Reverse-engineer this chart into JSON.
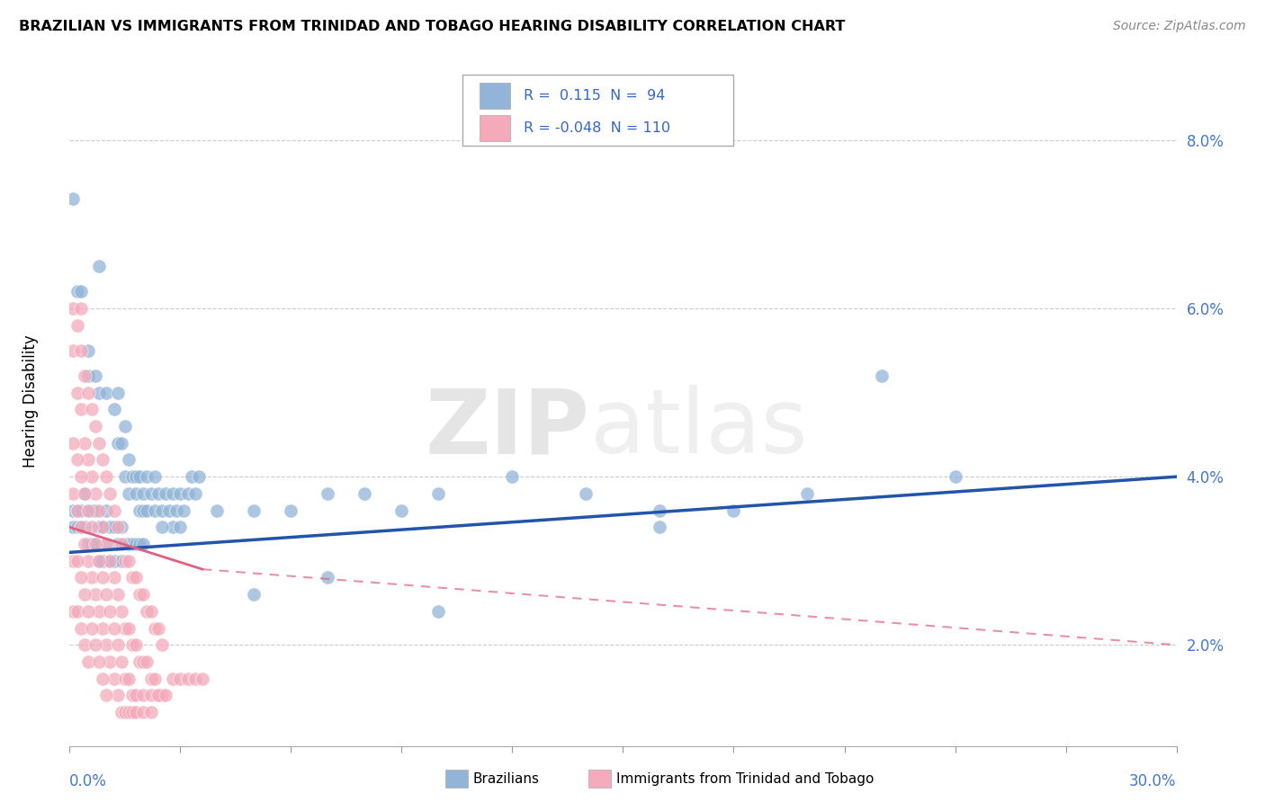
{
  "title": "BRAZILIAN VS IMMIGRANTS FROM TRINIDAD AND TOBAGO HEARING DISABILITY CORRELATION CHART",
  "source": "Source: ZipAtlas.com",
  "ylabel": "Hearing Disability",
  "ytick_labels": [
    "2.0%",
    "4.0%",
    "6.0%",
    "8.0%"
  ],
  "ytick_values": [
    0.02,
    0.04,
    0.06,
    0.08
  ],
  "xlim": [
    0.0,
    0.3
  ],
  "ylim": [
    0.008,
    0.09
  ],
  "legend_blue_r": "0.115",
  "legend_blue_n": "94",
  "legend_pink_r": "-0.048",
  "legend_pink_n": "110",
  "legend_label_blue": "Brazilians",
  "legend_label_pink": "Immigrants from Trinidad and Tobago",
  "blue_color": "#92B4D8",
  "pink_color": "#F4AABB",
  "trendline_blue_color": "#2255AA",
  "trendline_pink_color": "#E06080",
  "blue_scatter": [
    [
      0.001,
      0.073
    ],
    [
      0.002,
      0.062
    ],
    [
      0.003,
      0.062
    ],
    [
      0.005,
      0.055
    ],
    [
      0.005,
      0.052
    ],
    [
      0.007,
      0.052
    ],
    [
      0.008,
      0.065
    ],
    [
      0.008,
      0.05
    ],
    [
      0.01,
      0.05
    ],
    [
      0.012,
      0.048
    ],
    [
      0.013,
      0.05
    ],
    [
      0.013,
      0.044
    ],
    [
      0.014,
      0.044
    ],
    [
      0.015,
      0.046
    ],
    [
      0.015,
      0.04
    ],
    [
      0.016,
      0.042
    ],
    [
      0.016,
      0.038
    ],
    [
      0.017,
      0.04
    ],
    [
      0.018,
      0.04
    ],
    [
      0.018,
      0.038
    ],
    [
      0.019,
      0.04
    ],
    [
      0.019,
      0.036
    ],
    [
      0.02,
      0.038
    ],
    [
      0.02,
      0.036
    ],
    [
      0.021,
      0.04
    ],
    [
      0.021,
      0.036
    ],
    [
      0.022,
      0.038
    ],
    [
      0.023,
      0.04
    ],
    [
      0.023,
      0.036
    ],
    [
      0.024,
      0.038
    ],
    [
      0.025,
      0.036
    ],
    [
      0.026,
      0.038
    ],
    [
      0.027,
      0.036
    ],
    [
      0.028,
      0.038
    ],
    [
      0.028,
      0.034
    ],
    [
      0.029,
      0.036
    ],
    [
      0.03,
      0.038
    ],
    [
      0.031,
      0.036
    ],
    [
      0.032,
      0.038
    ],
    [
      0.033,
      0.04
    ],
    [
      0.034,
      0.038
    ],
    [
      0.035,
      0.04
    ],
    [
      0.001,
      0.036
    ],
    [
      0.001,
      0.034
    ],
    [
      0.002,
      0.036
    ],
    [
      0.002,
      0.034
    ],
    [
      0.003,
      0.036
    ],
    [
      0.003,
      0.034
    ],
    [
      0.004,
      0.038
    ],
    [
      0.004,
      0.034
    ],
    [
      0.005,
      0.036
    ],
    [
      0.005,
      0.032
    ],
    [
      0.006,
      0.036
    ],
    [
      0.006,
      0.032
    ],
    [
      0.007,
      0.036
    ],
    [
      0.007,
      0.032
    ],
    [
      0.008,
      0.034
    ],
    [
      0.008,
      0.03
    ],
    [
      0.009,
      0.034
    ],
    [
      0.009,
      0.03
    ],
    [
      0.01,
      0.036
    ],
    [
      0.01,
      0.032
    ],
    [
      0.011,
      0.034
    ],
    [
      0.011,
      0.03
    ],
    [
      0.012,
      0.034
    ],
    [
      0.012,
      0.03
    ],
    [
      0.013,
      0.032
    ],
    [
      0.014,
      0.034
    ],
    [
      0.014,
      0.03
    ],
    [
      0.015,
      0.032
    ],
    [
      0.016,
      0.032
    ],
    [
      0.017,
      0.032
    ],
    [
      0.018,
      0.032
    ],
    [
      0.019,
      0.032
    ],
    [
      0.02,
      0.032
    ],
    [
      0.025,
      0.034
    ],
    [
      0.03,
      0.034
    ],
    [
      0.04,
      0.036
    ],
    [
      0.05,
      0.036
    ],
    [
      0.06,
      0.036
    ],
    [
      0.07,
      0.038
    ],
    [
      0.08,
      0.038
    ],
    [
      0.09,
      0.036
    ],
    [
      0.1,
      0.038
    ],
    [
      0.12,
      0.04
    ],
    [
      0.14,
      0.038
    ],
    [
      0.16,
      0.036
    ],
    [
      0.2,
      0.038
    ],
    [
      0.22,
      0.052
    ],
    [
      0.24,
      0.04
    ],
    [
      0.16,
      0.034
    ],
    [
      0.18,
      0.036
    ],
    [
      0.05,
      0.026
    ],
    [
      0.07,
      0.028
    ],
    [
      0.1,
      0.024
    ]
  ],
  "pink_scatter": [
    [
      0.001,
      0.06
    ],
    [
      0.001,
      0.055
    ],
    [
      0.002,
      0.058
    ],
    [
      0.002,
      0.05
    ],
    [
      0.003,
      0.06
    ],
    [
      0.003,
      0.055
    ],
    [
      0.003,
      0.048
    ],
    [
      0.004,
      0.052
    ],
    [
      0.004,
      0.044
    ],
    [
      0.005,
      0.05
    ],
    [
      0.005,
      0.042
    ],
    [
      0.006,
      0.048
    ],
    [
      0.006,
      0.04
    ],
    [
      0.007,
      0.046
    ],
    [
      0.007,
      0.038
    ],
    [
      0.008,
      0.044
    ],
    [
      0.008,
      0.036
    ],
    [
      0.009,
      0.042
    ],
    [
      0.009,
      0.034
    ],
    [
      0.01,
      0.04
    ],
    [
      0.01,
      0.032
    ],
    [
      0.011,
      0.038
    ],
    [
      0.011,
      0.03
    ],
    [
      0.012,
      0.036
    ],
    [
      0.012,
      0.028
    ],
    [
      0.013,
      0.034
    ],
    [
      0.013,
      0.026
    ],
    [
      0.014,
      0.032
    ],
    [
      0.014,
      0.024
    ],
    [
      0.015,
      0.03
    ],
    [
      0.015,
      0.022
    ],
    [
      0.016,
      0.03
    ],
    [
      0.016,
      0.022
    ],
    [
      0.017,
      0.028
    ],
    [
      0.017,
      0.02
    ],
    [
      0.018,
      0.028
    ],
    [
      0.018,
      0.02
    ],
    [
      0.019,
      0.026
    ],
    [
      0.019,
      0.018
    ],
    [
      0.02,
      0.026
    ],
    [
      0.02,
      0.018
    ],
    [
      0.021,
      0.024
    ],
    [
      0.021,
      0.018
    ],
    [
      0.022,
      0.024
    ],
    [
      0.022,
      0.016
    ],
    [
      0.023,
      0.022
    ],
    [
      0.023,
      0.016
    ],
    [
      0.024,
      0.022
    ],
    [
      0.024,
      0.014
    ],
    [
      0.025,
      0.02
    ],
    [
      0.025,
      0.014
    ],
    [
      0.001,
      0.044
    ],
    [
      0.001,
      0.038
    ],
    [
      0.002,
      0.042
    ],
    [
      0.002,
      0.036
    ],
    [
      0.003,
      0.04
    ],
    [
      0.003,
      0.034
    ],
    [
      0.004,
      0.038
    ],
    [
      0.004,
      0.032
    ],
    [
      0.005,
      0.036
    ],
    [
      0.005,
      0.03
    ],
    [
      0.006,
      0.034
    ],
    [
      0.006,
      0.028
    ],
    [
      0.007,
      0.032
    ],
    [
      0.007,
      0.026
    ],
    [
      0.008,
      0.03
    ],
    [
      0.008,
      0.024
    ],
    [
      0.009,
      0.028
    ],
    [
      0.009,
      0.022
    ],
    [
      0.01,
      0.026
    ],
    [
      0.01,
      0.02
    ],
    [
      0.011,
      0.024
    ],
    [
      0.011,
      0.018
    ],
    [
      0.012,
      0.022
    ],
    [
      0.012,
      0.016
    ],
    [
      0.013,
      0.02
    ],
    [
      0.013,
      0.014
    ],
    [
      0.014,
      0.018
    ],
    [
      0.014,
      0.012
    ],
    [
      0.015,
      0.016
    ],
    [
      0.015,
      0.012
    ],
    [
      0.016,
      0.016
    ],
    [
      0.016,
      0.012
    ],
    [
      0.017,
      0.014
    ],
    [
      0.017,
      0.012
    ],
    [
      0.018,
      0.014
    ],
    [
      0.018,
      0.012
    ],
    [
      0.02,
      0.014
    ],
    [
      0.02,
      0.012
    ],
    [
      0.022,
      0.014
    ],
    [
      0.022,
      0.012
    ],
    [
      0.024,
      0.014
    ],
    [
      0.026,
      0.014
    ],
    [
      0.028,
      0.016
    ],
    [
      0.03,
      0.016
    ],
    [
      0.032,
      0.016
    ],
    [
      0.034,
      0.016
    ],
    [
      0.036,
      0.016
    ],
    [
      0.001,
      0.03
    ],
    [
      0.001,
      0.024
    ],
    [
      0.002,
      0.03
    ],
    [
      0.002,
      0.024
    ],
    [
      0.003,
      0.028
    ],
    [
      0.003,
      0.022
    ],
    [
      0.004,
      0.026
    ],
    [
      0.004,
      0.02
    ],
    [
      0.005,
      0.024
    ],
    [
      0.005,
      0.018
    ],
    [
      0.006,
      0.022
    ],
    [
      0.007,
      0.02
    ],
    [
      0.008,
      0.018
    ],
    [
      0.009,
      0.016
    ],
    [
      0.01,
      0.014
    ]
  ],
  "blue_trend": {
    "x_start": 0.0,
    "x_end": 0.3,
    "y_start": 0.031,
    "y_end": 0.04
  },
  "pink_trend_solid": {
    "x_start": 0.0,
    "x_end": 0.036,
    "y_start": 0.034,
    "y_end": 0.029
  },
  "pink_trend_dashed": {
    "x_start": 0.036,
    "x_end": 0.3,
    "y_start": 0.029,
    "y_end": 0.02
  }
}
